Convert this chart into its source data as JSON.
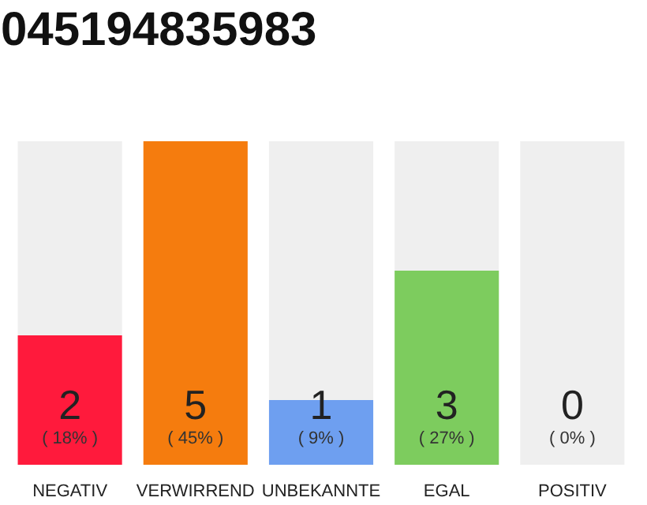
{
  "chart_data": {
    "type": "bar",
    "title": "045194835983",
    "stacked": true,
    "categories": [
      "NEGATIV",
      "VERWIRREND",
      "UNBEKANNTE",
      "EGAL",
      "POSITIV"
    ],
    "series": [
      {
        "values": [
          2,
          5,
          1,
          3,
          0
        ],
        "colors": [
          "#ff1a3c",
          "#f57c0e",
          "#6e9ff0",
          "#7dcc5e",
          "#cccccc"
        ],
        "value_labels": [
          "2",
          "5",
          "1",
          "3",
          null
        ]
      },
      {
        "values": [
          3,
          0,
          4,
          2,
          5
        ],
        "color": "#efefef"
      }
    ],
    "ylim": [
      0,
      5
    ],
    "tick_labels": "x",
    "grid": false,
    "annotations": [
      "( 18% )",
      "( 45% )",
      "( 9% )",
      "( 27% )",
      "( 0% )",
      {
        "text": "0",
        "x": "POSITIV",
        "y": 0
      }
    ]
  }
}
